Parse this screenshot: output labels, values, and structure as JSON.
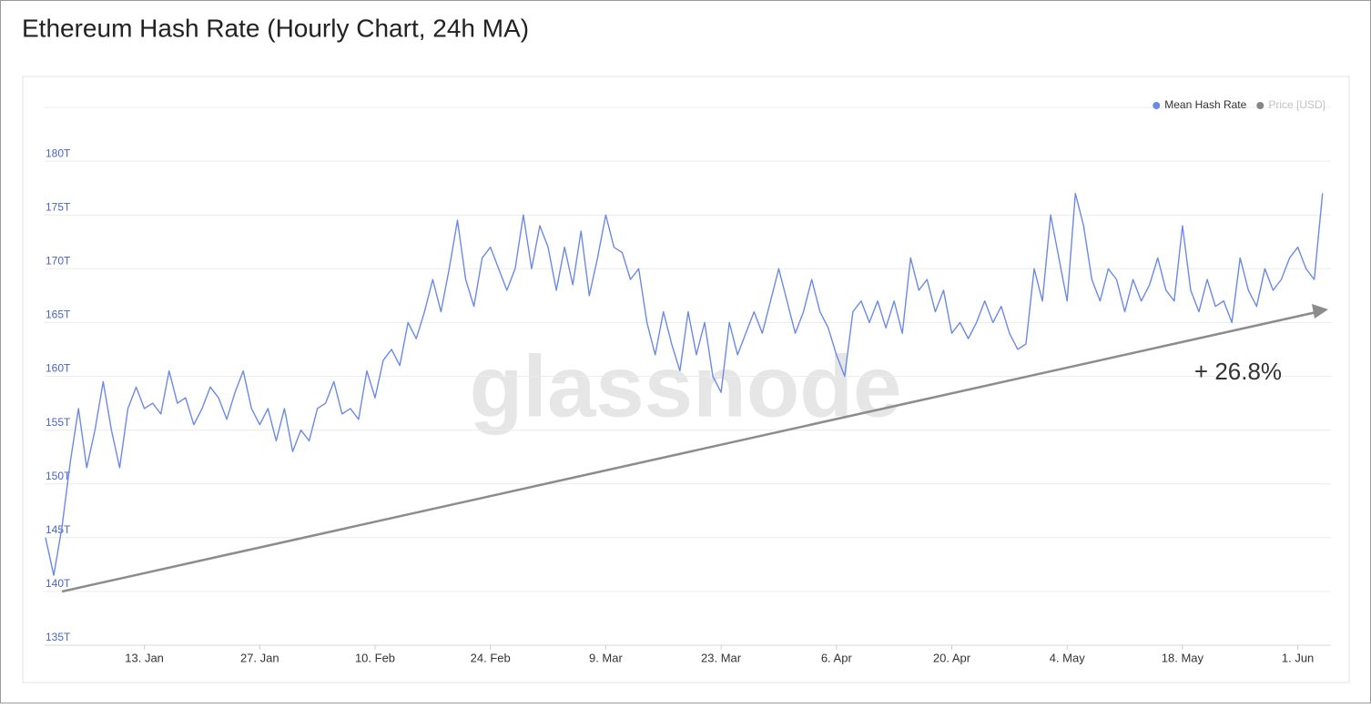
{
  "chart_data": {
    "type": "line",
    "title": "Ethereum Hash Rate (Hourly Chart, 24h MA)",
    "watermark": "glassnode",
    "annotation": "+ 26.8%",
    "legend": "top-right",
    "grid": true,
    "inactive_legend": [
      {
        "name": "Price [USD]",
        "color": "#7a7a7a"
      }
    ],
    "x": [
      "1. Jan",
      "2. Jan",
      "3. Jan",
      "4. Jan",
      "5. Jan",
      "6. Jan",
      "7. Jan",
      "8. Jan",
      "9. Jan",
      "10. Jan",
      "11. Jan",
      "12. Jan",
      "13. Jan",
      "14. Jan",
      "15. Jan",
      "16. Jan",
      "17. Jan",
      "18. Jan",
      "19. Jan",
      "20. Jan",
      "21. Jan",
      "22. Jan",
      "23. Jan",
      "24. Jan",
      "25. Jan",
      "26. Jan",
      "27. Jan",
      "28. Jan",
      "29. Jan",
      "30. Jan",
      "31. Jan",
      "1. Feb",
      "2. Feb",
      "3. Feb",
      "4. Feb",
      "5. Feb",
      "6. Feb",
      "7. Feb",
      "8. Feb",
      "9. Feb",
      "10. Feb",
      "11. Feb",
      "12. Feb",
      "13. Feb",
      "14. Feb",
      "15. Feb",
      "16. Feb",
      "17. Feb",
      "18. Feb",
      "19. Feb",
      "20. Feb",
      "21. Feb",
      "22. Feb",
      "23. Feb",
      "24. Feb",
      "25. Feb",
      "26. Feb",
      "27. Feb",
      "28. Feb",
      "29. Feb",
      "1. Mar",
      "2. Mar",
      "3. Mar",
      "4. Mar",
      "5. Mar",
      "6. Mar",
      "7. Mar",
      "8. Mar",
      "9. Mar",
      "10. Mar",
      "11. Mar",
      "12. Mar",
      "13. Mar",
      "14. Mar",
      "15. Mar",
      "16. Mar",
      "17. Mar",
      "18. Mar",
      "19. Mar",
      "20. Mar",
      "21. Mar",
      "22. Mar",
      "23. Mar",
      "24. Mar",
      "25. Mar",
      "26. Mar",
      "27. Mar",
      "28. Mar",
      "29. Mar",
      "30. Mar",
      "31. Mar",
      "1. Apr",
      "2. Apr",
      "3. Apr",
      "4. Apr",
      "5. Apr",
      "6. Apr",
      "7. Apr",
      "8. Apr",
      "9. Apr",
      "10. Apr",
      "11. Apr",
      "12. Apr",
      "13. Apr",
      "14. Apr",
      "15. Apr",
      "16. Apr",
      "17. Apr",
      "18. Apr",
      "19. Apr",
      "20. Apr",
      "21. Apr",
      "22. Apr",
      "23. Apr",
      "24. Apr",
      "25. Apr",
      "26. Apr",
      "27. Apr",
      "28. Apr",
      "29. Apr",
      "30. Apr",
      "1. May",
      "2. May",
      "3. May",
      "4. May",
      "5. May",
      "6. May",
      "7. May",
      "8. May",
      "9. May",
      "10. May",
      "11. May",
      "12. May",
      "13. May",
      "14. May",
      "15. May",
      "16. May",
      "17. May",
      "18. May",
      "19. May",
      "20. May",
      "21. May",
      "22. May",
      "23. May",
      "24. May",
      "25. May",
      "26. May",
      "27. May",
      "28. May",
      "29. May",
      "30. May",
      "31. May",
      "1. Jun",
      "2. Jun",
      "3. Jun",
      "4. Jun"
    ],
    "series": [
      {
        "name": "Mean Hash Rate",
        "color": "#6b8ae6",
        "values": [
          145,
          141.5,
          146,
          152,
          157,
          151.5,
          155,
          159.5,
          155,
          151.5,
          157,
          159,
          157,
          157.5,
          156.5,
          160.5,
          157.5,
          158,
          155.5,
          157,
          159,
          158,
          156,
          158.5,
          160.5,
          157,
          155.5,
          157,
          154,
          157,
          153,
          155,
          154,
          157,
          157.5,
          159.5,
          156.5,
          157,
          156,
          160.5,
          158,
          161.5,
          162.5,
          161,
          165,
          163.5,
          166,
          169,
          166,
          170,
          174.5,
          169,
          166.5,
          171,
          172,
          170,
          168,
          170,
          175,
          170,
          174,
          172,
          168,
          172,
          168.5,
          173.5,
          167.5,
          171,
          175,
          172,
          171.5,
          169,
          170,
          165,
          162,
          166,
          163,
          160.5,
          166,
          162,
          165,
          160,
          158.5,
          165,
          162,
          164,
          166,
          164,
          167,
          170,
          167,
          164,
          166,
          169,
          166,
          164.5,
          162,
          160,
          166,
          167,
          165,
          167,
          164.5,
          167,
          164,
          171,
          168,
          169,
          166,
          168,
          164,
          165,
          163.5,
          165,
          167,
          165,
          166.5,
          164,
          162.5,
          163,
          170,
          167,
          175,
          171,
          167,
          177,
          174,
          169,
          167,
          170,
          169,
          166,
          169,
          167,
          168.5,
          171,
          168,
          167,
          174,
          168,
          166,
          169,
          166.5,
          167,
          165,
          171,
          168,
          166.5,
          170,
          168,
          169,
          171,
          172,
          170,
          169,
          177
        ]
      }
    ],
    "ylim": [
      135,
      185
    ],
    "yticks": [
      {
        "value": 135,
        "label": "135T"
      },
      {
        "value": 140,
        "label": "140T"
      },
      {
        "value": 145,
        "label": "145T"
      },
      {
        "value": 150,
        "label": "150T"
      },
      {
        "value": 155,
        "label": "155T"
      },
      {
        "value": 160,
        "label": "160T"
      },
      {
        "value": 165,
        "label": "165T"
      },
      {
        "value": 170,
        "label": "170T"
      },
      {
        "value": 175,
        "label": "175T"
      },
      {
        "value": 180,
        "label": "180T"
      }
    ],
    "xticks": [
      "13. Jan",
      "27. Jan",
      "10. Feb",
      "24. Feb",
      "9. Mar",
      "23. Mar",
      "6. Apr",
      "20. Apr",
      "4. May",
      "18. May",
      "1. Jun"
    ]
  }
}
